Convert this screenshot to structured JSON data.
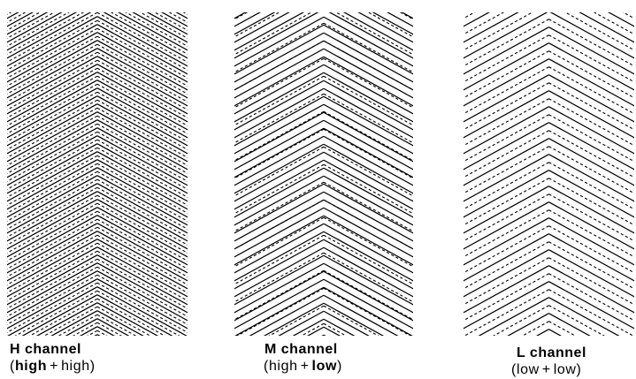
{
  "panels": [
    {
      "id": "h-channel",
      "title": "H  channel",
      "formula": {
        "a": "high",
        "op": "+",
        "b": "high",
        "a_bold": true,
        "b_bold": false
      },
      "solid_spacing": 9.0,
      "dashed_spacing": 9.0
    },
    {
      "id": "m-channel",
      "title": "M  channel",
      "formula": {
        "a": "high",
        "op": "+",
        "b": "low",
        "a_bold": false,
        "b_bold": true
      },
      "solid_spacing": 9.0,
      "dashed_spacing": 20.0
    },
    {
      "id": "l-channel",
      "title": "L  channel",
      "formula": {
        "a": "low",
        "op": "+",
        "b": "low",
        "a_bold": false,
        "b_bold": false
      },
      "solid_spacing": 18.0,
      "dashed_spacing": 18.0
    }
  ],
  "colors": {
    "ink": "#000000",
    "background": "#ffffff"
  }
}
